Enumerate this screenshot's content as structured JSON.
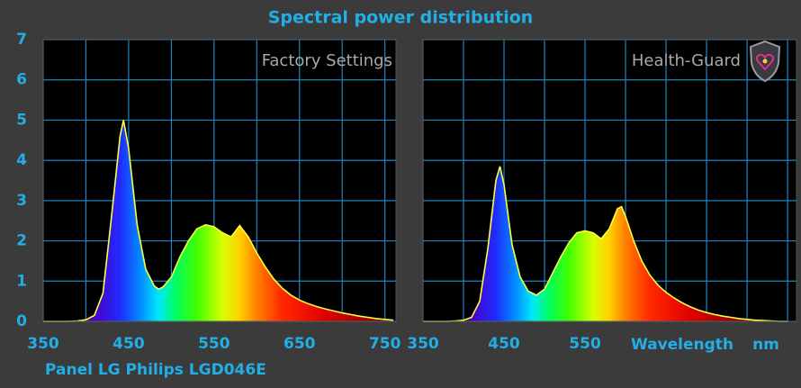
{
  "title": "Spectral power distribution",
  "footnote": "Panel LG Philips LGD046E",
  "chart_data": [
    {
      "type": "area",
      "label": "Factory Settings",
      "x": [
        350,
        360,
        370,
        380,
        390,
        400,
        410,
        420,
        430,
        440,
        444,
        450,
        460,
        470,
        480,
        485,
        490,
        500,
        510,
        520,
        530,
        540,
        550,
        560,
        570,
        580,
        590,
        600,
        610,
        620,
        630,
        640,
        650,
        660,
        670,
        680,
        690,
        700,
        710,
        720,
        730,
        740,
        750,
        760
      ],
      "values": [
        0,
        0,
        0,
        0,
        0.01,
        0.04,
        0.15,
        0.7,
        2.6,
        4.6,
        5.0,
        4.3,
        2.4,
        1.3,
        0.88,
        0.8,
        0.85,
        1.1,
        1.6,
        2.0,
        2.3,
        2.4,
        2.35,
        2.2,
        2.1,
        2.38,
        2.1,
        1.7,
        1.35,
        1.05,
        0.82,
        0.65,
        0.53,
        0.44,
        0.37,
        0.31,
        0.26,
        0.21,
        0.17,
        0.13,
        0.1,
        0.07,
        0.05,
        0.03
      ],
      "color": "#ffff3c",
      "xlim": [
        350,
        763
      ],
      "xticks": [
        350,
        450,
        550,
        650,
        750
      ],
      "xminor": [
        400,
        500,
        600,
        700
      ],
      "ylim": [
        0,
        7
      ],
      "yticks": [
        0,
        1,
        2,
        3,
        4,
        5,
        6,
        7
      ],
      "show_ytick_labels": true,
      "grid": true
    },
    {
      "type": "area",
      "label": "Health-Guard",
      "x_label": "Wavelength",
      "x_unit": "nm",
      "x": [
        350,
        360,
        370,
        380,
        390,
        400,
        410,
        420,
        430,
        440,
        445,
        450,
        460,
        470,
        480,
        490,
        500,
        510,
        520,
        530,
        540,
        550,
        560,
        570,
        580,
        590,
        595,
        600,
        610,
        620,
        630,
        640,
        650,
        660,
        670,
        680,
        690,
        700,
        710,
        720,
        730,
        740,
        750,
        760,
        770,
        780,
        790,
        800
      ],
      "values": [
        0,
        0,
        0,
        0,
        0.01,
        0.03,
        0.1,
        0.5,
        1.8,
        3.5,
        3.85,
        3.4,
        1.9,
        1.1,
        0.75,
        0.65,
        0.8,
        1.2,
        1.6,
        1.95,
        2.2,
        2.25,
        2.2,
        2.05,
        2.3,
        2.8,
        2.85,
        2.6,
        2.0,
        1.5,
        1.15,
        0.9,
        0.72,
        0.58,
        0.46,
        0.36,
        0.28,
        0.22,
        0.17,
        0.13,
        0.1,
        0.07,
        0.05,
        0.03,
        0.02,
        0.01,
        0,
        0
      ],
      "color": "#ffff3c",
      "xlim": [
        350,
        811
      ],
      "xticks": [
        350,
        450,
        550
      ],
      "xminor": [
        400,
        500,
        600,
        650,
        700,
        750,
        800
      ],
      "ylim": [
        0,
        7
      ],
      "yticks": [
        0,
        1,
        2,
        3,
        4,
        5,
        6,
        7
      ],
      "show_ytick_labels": false,
      "grid": true
    }
  ]
}
